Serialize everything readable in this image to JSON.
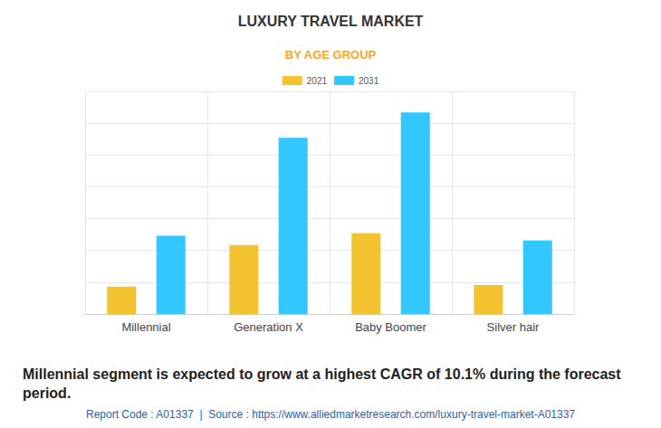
{
  "chart_data": {
    "type": "bar",
    "title": "LUXURY TRAVEL MARKET",
    "subtitle": "BY AGE GROUP",
    "categories": [
      "Millennial",
      "Generation X",
      "Baby Boomer",
      "Silver hair"
    ],
    "series": [
      {
        "name": "2021",
        "color": "#f4c430",
        "values": [
          0.86,
          2.17,
          2.54,
          0.91
        ]
      },
      {
        "name": "2031",
        "color": "#33c7ff",
        "values": [
          2.46,
          5.54,
          6.34,
          2.31
        ]
      }
    ],
    "ylim": [
      0,
      7
    ],
    "yticks": [
      0,
      1,
      2,
      3,
      4,
      5,
      6,
      7
    ],
    "grid": true,
    "legend": "top",
    "tick_labels": "x",
    "caption": "Millennial segment is expected to grow at a highest CAGR of 10.1% during the forecast period.",
    "footer": "Report Code : A01337  |  Source : https://www.alliedmarketresearch.com/luxury-travel-market-A01337"
  }
}
